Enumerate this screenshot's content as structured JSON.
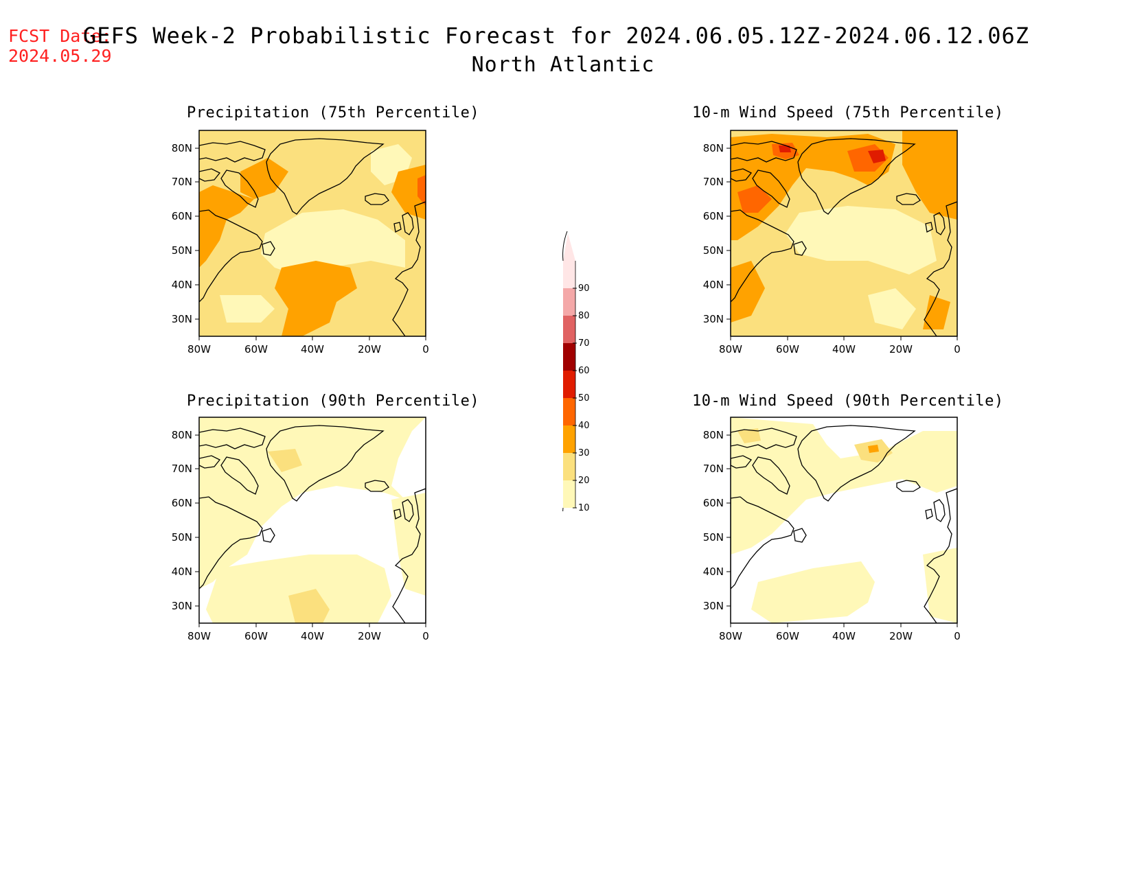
{
  "header": {
    "fcst_label": "FCST Date:",
    "fcst_date": "2024.05.29",
    "title": "GEFS Week-2 Probabilistic Forecast for 2024.06.05.12Z-2024.06.12.06Z",
    "region": "North Atlantic"
  },
  "axes": {
    "lat_labels": [
      "80N",
      "70N",
      "60N",
      "50N",
      "40N",
      "30N"
    ],
    "lon_labels": [
      "80W",
      "60W",
      "40W",
      "20W",
      "0"
    ]
  },
  "panels": [
    {
      "title": "Precipitation (75th Percentile)",
      "variable": "precipitation",
      "percentile": 75
    },
    {
      "title": "10-m Wind Speed (75th Percentile)",
      "variable": "wind_speed_10m",
      "percentile": 75
    },
    {
      "title": "Precipitation (90th Percentile)",
      "variable": "precipitation",
      "percentile": 90
    },
    {
      "title": "10-m Wind Speed (90th Percentile)",
      "variable": "wind_speed_10m",
      "percentile": 90
    }
  ],
  "colorbar": {
    "levels": [
      "10",
      "20",
      "30",
      "40",
      "50",
      "60",
      "70",
      "80",
      "90"
    ],
    "colors": [
      "#fff8b8",
      "#fbe07e",
      "#ffa200",
      "#ff6600",
      "#e01c00",
      "#a00000",
      "#e06262",
      "#f4a8a8",
      "#ffe6e6"
    ]
  },
  "colors": {
    "fcst_text": "#ff2020",
    "c10_20": "#fff8b8",
    "c20_30": "#fbe07e",
    "c30_40": "#ffa200",
    "c40_50": "#ff6600",
    "c50_60": "#e01c00"
  }
}
